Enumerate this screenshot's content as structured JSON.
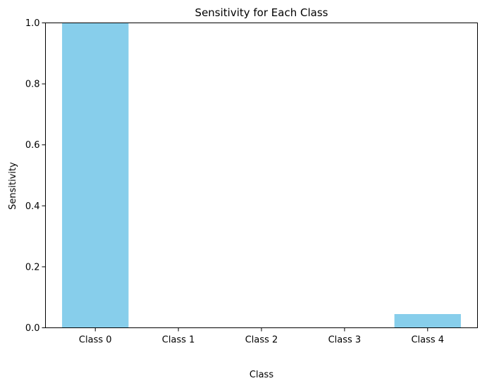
{
  "chart_data": {
    "type": "bar",
    "title": "Sensitivity for Each Class",
    "xlabel": "Class",
    "ylabel": "Sensitivity",
    "categories": [
      "Class 0",
      "Class 1",
      "Class 2",
      "Class 3",
      "Class 4"
    ],
    "values": [
      1.0,
      0.0,
      0.0,
      0.0,
      0.045
    ],
    "ylim": [
      0,
      1.0
    ],
    "yticks": [
      "0.0",
      "0.2",
      "0.4",
      "0.6",
      "0.8",
      "1.0"
    ],
    "ytick_values": [
      0.0,
      0.2,
      0.4,
      0.6,
      0.8,
      1.0
    ],
    "bar_color": "#87CEEB",
    "grid": false,
    "legend": "none"
  }
}
